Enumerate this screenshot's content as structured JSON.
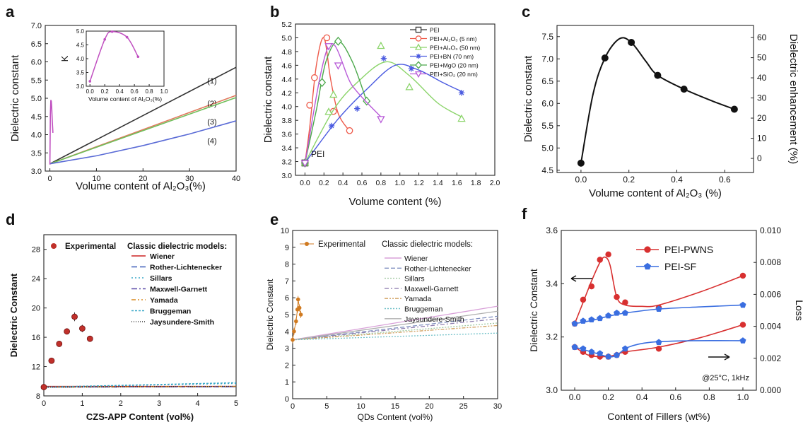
{
  "chart_data": [
    {
      "panel": "a",
      "type": "line",
      "xlabel": "Volume content of Al₂O₃(%)",
      "ylabel": "Dielectric constant",
      "xlim": [
        -1,
        40
      ],
      "ylim": [
        3.0,
        7.0
      ],
      "xticks": [
        "0",
        "10",
        "20",
        "30",
        "40"
      ],
      "yticks": [
        "3.0",
        "3.5",
        "4.0",
        "4.5",
        "5.0",
        "5.5",
        "6.0",
        "6.5",
        "7.0"
      ],
      "series": [
        {
          "name": "(1)",
          "color": "#333333",
          "x": [
            0,
            40
          ],
          "y": [
            3.2,
            5.85
          ]
        },
        {
          "name": "(2)",
          "color": "#e07a5f",
          "x": [
            0,
            40
          ],
          "y": [
            3.2,
            5.08
          ]
        },
        {
          "name": "(3)",
          "color": "#6fbf5a",
          "x": [
            0,
            40
          ],
          "y": [
            3.2,
            5.02
          ]
        },
        {
          "name": "(4)",
          "color": "#5a6bd6",
          "x": [
            0,
            10,
            20,
            30,
            40
          ],
          "y": [
            3.2,
            3.42,
            3.7,
            4.02,
            4.38
          ]
        },
        {
          "name": "",
          "color": "#c050c0",
          "x": [
            0,
            0.1,
            0.2,
            0.3,
            0.4,
            0.5,
            0.65
          ],
          "y": [
            3.18,
            4.55,
            4.95,
            4.92,
            4.72,
            4.4,
            4.05
          ]
        }
      ],
      "inset": {
        "xlabel": "Volume content of Al₂O₃(%)",
        "ylabel": "K",
        "xlim": [
          -0.05,
          1.0
        ],
        "ylim": [
          3.0,
          5.0
        ],
        "xticks": [
          "0.0",
          "0.2",
          "0.4",
          "0.6",
          "0.8",
          "1.0"
        ],
        "yticks": [
          "3.0",
          "3.5",
          "4.0",
          "4.5",
          "5.0"
        ],
        "x": [
          0.0,
          0.2,
          0.3,
          0.5,
          0.65
        ],
        "y": [
          3.18,
          4.7,
          4.98,
          4.78,
          4.07
        ]
      }
    },
    {
      "panel": "b",
      "type": "line",
      "xlabel": "Volume content (%)",
      "ylabel": "Dielectric constant",
      "xlim": [
        -0.1,
        2.0
      ],
      "ylim": [
        3.0,
        5.2
      ],
      "xticks": [
        "0.0",
        "0.2",
        "0.4",
        "0.6",
        "0.8",
        "1.0",
        "1.2",
        "1.4",
        "1.6",
        "1.8",
        "2.0"
      ],
      "yticks": [
        "3.0",
        "3.2",
        "3.4",
        "3.6",
        "3.8",
        "4.0",
        "4.2",
        "4.4",
        "4.6",
        "4.8",
        "5.0",
        "5.2"
      ],
      "annotation": "PEI",
      "series": [
        {
          "name": "PEI",
          "color": "#333333",
          "marker": "square",
          "x": [
            0
          ],
          "y": [
            3.18
          ],
          "curve": []
        },
        {
          "name": "PEI+Al₂O₃ (5 nm)",
          "color": "#ee5a4a",
          "marker": "circle",
          "x": [
            0,
            0.05,
            0.1,
            0.23,
            0.3,
            0.47
          ],
          "y": [
            3.18,
            4.02,
            4.42,
            5.0,
            3.93,
            3.65
          ],
          "curve": [
            [
              0,
              3.18
            ],
            [
              0.05,
              3.7
            ],
            [
              0.12,
              4.6
            ],
            [
              0.2,
              5.0
            ],
            [
              0.27,
              4.4
            ],
            [
              0.35,
              3.9
            ],
            [
              0.46,
              3.66
            ]
          ]
        },
        {
          "name": "PEI+Al₂O₃ (50 nm)",
          "color": "#8bd46a",
          "marker": "triangle",
          "x": [
            0,
            0.25,
            0.3,
            0.8,
            1.1,
            1.65
          ],
          "y": [
            3.18,
            3.92,
            4.17,
            4.88,
            4.28,
            3.82
          ],
          "curve": [
            [
              0,
              3.18
            ],
            [
              0.3,
              3.95
            ],
            [
              0.55,
              4.35
            ],
            [
              0.85,
              4.65
            ],
            [
              1.1,
              4.45
            ],
            [
              1.4,
              4.05
            ],
            [
              1.65,
              3.85
            ]
          ]
        },
        {
          "name": "PEI+BN (70 nm)",
          "color": "#4a5ae0",
          "marker": "asterisk",
          "x": [
            0,
            0.28,
            0.55,
            0.83,
            1.12,
            1.65
          ],
          "y": [
            3.18,
            3.72,
            3.97,
            4.7,
            4.55,
            4.2
          ],
          "curve": [
            [
              0,
              3.18
            ],
            [
              0.35,
              3.82
            ],
            [
              0.65,
              4.25
            ],
            [
              0.95,
              4.6
            ],
            [
              1.2,
              4.53
            ],
            [
              1.45,
              4.35
            ],
            [
              1.65,
              4.22
            ]
          ]
        },
        {
          "name": "PEI+MgO (20 nm)",
          "color": "#4aa84a",
          "marker": "diamond",
          "x": [
            0,
            0.18,
            0.35,
            0.65
          ],
          "y": [
            3.18,
            4.35,
            4.95,
            4.08
          ],
          "curve": [
            [
              0,
              3.18
            ],
            [
              0.12,
              3.95
            ],
            [
              0.22,
              4.65
            ],
            [
              0.35,
              4.95
            ],
            [
              0.5,
              4.65
            ],
            [
              0.65,
              4.08
            ]
          ]
        },
        {
          "name": "PEI+SiO₂ (20 nm)",
          "color": "#b85ad8",
          "marker": "triangle-down",
          "x": [
            0,
            0.25,
            0.35,
            0.8
          ],
          "y": [
            3.18,
            4.88,
            4.6,
            3.82
          ],
          "curve": [
            [
              0,
              3.18
            ],
            [
              0.25,
              4.88
            ],
            [
              0.5,
              4.3
            ],
            [
              0.8,
              3.85
            ]
          ]
        }
      ]
    },
    {
      "panel": "c",
      "type": "line",
      "xlabel": "Volume content of Al₂O₃ (%)",
      "ylabel": "Dielectric constant",
      "y2label": "Dielectric enhancement (%)",
      "xlim": [
        -0.1,
        0.72
      ],
      "ylim": [
        4.45,
        7.75
      ],
      "y2lim": [
        -7,
        66
      ],
      "xticks": [
        "0.0",
        "0.2",
        "0.4",
        "0.6"
      ],
      "yticks": [
        "4.5",
        "5.0",
        "5.5",
        "6.0",
        "6.5",
        "7.0",
        "7.5"
      ],
      "y2ticks": [
        "0",
        "10",
        "20",
        "30",
        "40",
        "50",
        "60"
      ],
      "x": [
        0.0,
        0.1,
        0.21,
        0.32,
        0.43,
        0.64
      ],
      "y": [
        4.66,
        7.02,
        7.37,
        6.63,
        6.32,
        5.87
      ],
      "curve": [
        [
          0,
          4.66
        ],
        [
          0.05,
          6.2
        ],
        [
          0.1,
          7.02
        ],
        [
          0.16,
          7.45
        ],
        [
          0.21,
          7.37
        ],
        [
          0.27,
          6.95
        ],
        [
          0.32,
          6.63
        ],
        [
          0.43,
          6.32
        ],
        [
          0.55,
          6.05
        ],
        [
          0.64,
          5.87
        ]
      ]
    },
    {
      "panel": "d",
      "type": "scatter",
      "xlabel": "CZS-APP Content (vol%)",
      "ylabel": "Dielectric Constant",
      "xlim": [
        0,
        5
      ],
      "ylim": [
        8,
        30
      ],
      "xticks": [
        "0",
        "1",
        "2",
        "3",
        "4",
        "5"
      ],
      "yticks": [
        "8",
        "12",
        "16",
        "20",
        "24",
        "28"
      ],
      "legend_header": "Classic dielectric models:",
      "experimental": {
        "name": "Experimental",
        "color": "#c0302a",
        "x": [
          0,
          0.2,
          0.4,
          0.6,
          0.8,
          1.0,
          1.2
        ],
        "y": [
          9.2,
          12.8,
          15.1,
          16.8,
          18.8,
          17.2,
          15.8
        ],
        "err": [
          0.2,
          0.3,
          0.4,
          0.4,
          0.6,
          0.5,
          0.4
        ]
      },
      "models": [
        {
          "name": "Wiener",
          "color": "#cc2222",
          "dash": "",
          "y": [
            9.3,
            9.3
          ]
        },
        {
          "name": "Rother-Lichtenecker",
          "color": "#3a5ab8",
          "dash": "8 4",
          "y": [
            9.2,
            9.25
          ]
        },
        {
          "name": "Sillars",
          "color": "#3aa8c8",
          "dash": "2 3",
          "y": [
            9.2,
            9.7
          ]
        },
        {
          "name": "Maxwell-Garnett",
          "color": "#5a4aa8",
          "dash": "8 3 2 3",
          "y": [
            9.2,
            9.25
          ]
        },
        {
          "name": "Yamada",
          "color": "#d88a20",
          "dash": "6 3 2 3 2 3",
          "y": [
            9.2,
            9.3
          ]
        },
        {
          "name": "Bruggeman",
          "color": "#3aa8c8",
          "dash": "3 2",
          "y": [
            9.2,
            9.8
          ]
        },
        {
          "name": "Jaysundere-Smith",
          "color": "#333333",
          "dash": "1 2",
          "y": [
            9.2,
            9.3
          ]
        }
      ]
    },
    {
      "panel": "e",
      "type": "scatter",
      "xlabel": "QDs Content (vol%)",
      "ylabel": "Dielectric Constant",
      "xlim": [
        0,
        30
      ],
      "ylim": [
        0,
        10
      ],
      "xticks": [
        "0",
        "5",
        "10",
        "15",
        "20",
        "25",
        "30"
      ],
      "yticks": [
        "0",
        "1",
        "2",
        "3",
        "4",
        "5",
        "6",
        "7",
        "8",
        "9",
        "10"
      ],
      "legend_header": "Classic dielectric models:",
      "experimental": {
        "name": "Experimental",
        "color": "#d07a20",
        "x": [
          0,
          0.2,
          0.5,
          0.7,
          0.8,
          1.0,
          1.2
        ],
        "y": [
          3.5,
          4.0,
          4.6,
          5.3,
          5.9,
          5.4,
          5.0
        ]
      },
      "models": [
        {
          "name": "Wiener",
          "color": "#d8a0d8",
          "dash": "",
          "y": [
            3.5,
            5.5
          ]
        },
        {
          "name": "Rother-Lichtenecker",
          "color": "#8090c0",
          "dash": "6 3",
          "y": [
            3.5,
            4.9
          ]
        },
        {
          "name": "Sillars",
          "color": "#a0c8a0",
          "dash": "2 2",
          "y": [
            3.5,
            4.5
          ]
        },
        {
          "name": "Maxwell-Garnett",
          "color": "#9080b0",
          "dash": "6 3 2 3",
          "y": [
            3.5,
            4.75
          ]
        },
        {
          "name": "Yamada",
          "color": "#d0a060",
          "dash": "5 2 2 2 2 2",
          "y": [
            3.5,
            4.35
          ]
        },
        {
          "name": "Bruggeman",
          "color": "#70c0c8",
          "dash": "2 2",
          "y": [
            3.5,
            3.9
          ]
        },
        {
          "name": "Jaysundere-Smith",
          "color": "#b0b0b0",
          "dash": "",
          "y": [
            3.5,
            5.2
          ]
        }
      ]
    },
    {
      "panel": "f",
      "type": "line",
      "xlabel": "Content of Fillers (wt%)",
      "ylabel": "Dielectric Constant",
      "y2label": "Loss",
      "xlim": [
        -0.08,
        1.08
      ],
      "ylim": [
        3.0,
        3.6
      ],
      "y2lim": [
        0,
        0.01
      ],
      "xticks": [
        "0.0",
        "0.2",
        "0.4",
        "0.6",
        "0.8",
        "1.0"
      ],
      "yticks": [
        "3.0",
        "3.2",
        "3.4",
        "3.6"
      ],
      "y2ticks": [
        "0.000",
        "0.002",
        "0.004",
        "0.006",
        "0.008",
        "0.010"
      ],
      "annotation": "@25°C, 1kHz",
      "series": [
        {
          "name": "PEI-PWNS",
          "axis": "left",
          "color": "#d83030",
          "marker": "circle",
          "x": [
            0,
            0.05,
            0.1,
            0.15,
            0.2,
            0.25,
            0.3,
            0.5,
            1.0
          ],
          "y": [
            3.25,
            3.34,
            3.39,
            3.49,
            3.51,
            3.35,
            3.33,
            3.31,
            3.43
          ],
          "curve": [
            [
              0,
              3.25
            ],
            [
              0.05,
              3.33
            ],
            [
              0.1,
              3.41
            ],
            [
              0.15,
              3.48
            ],
            [
              0.18,
              3.5
            ],
            [
              0.21,
              3.47
            ],
            [
              0.25,
              3.35
            ],
            [
              0.3,
              3.32
            ],
            [
              0.4,
              3.315
            ],
            [
              0.5,
              3.32
            ],
            [
              0.75,
              3.37
            ],
            [
              1.0,
              3.43
            ]
          ]
        },
        {
          "name": "PEI-SF",
          "axis": "left",
          "color": "#3a6ee0",
          "marker": "pentagon",
          "x": [
            0,
            0.05,
            0.1,
            0.15,
            0.2,
            0.25,
            0.3,
            0.5,
            1.0
          ],
          "y": [
            3.25,
            3.26,
            3.265,
            3.27,
            3.28,
            3.29,
            3.29,
            3.305,
            3.32
          ],
          "curve": [
            [
              0,
              3.25
            ],
            [
              0.1,
              3.262
            ],
            [
              0.2,
              3.278
            ],
            [
              0.3,
              3.29
            ],
            [
              0.5,
              3.305
            ],
            [
              0.75,
              3.313
            ],
            [
              1.0,
              3.32
            ]
          ]
        },
        {
          "name": "",
          "axis": "right",
          "color": "#d83030",
          "marker": "circle",
          "x": [
            0,
            0.05,
            0.1,
            0.15,
            0.2,
            0.25,
            0.3,
            0.5,
            1.0
          ],
          "y": [
            0.0027,
            0.0024,
            0.0022,
            0.0021,
            0.0021,
            0.0022,
            0.0024,
            0.0026,
            0.0041
          ],
          "curve": [
            [
              0,
              0.0027
            ],
            [
              0.08,
              0.0022
            ],
            [
              0.15,
              0.0021
            ],
            [
              0.22,
              0.00215
            ],
            [
              0.3,
              0.0024
            ],
            [
              0.5,
              0.0027
            ],
            [
              0.75,
              0.0033
            ],
            [
              1.0,
              0.0041
            ]
          ]
        },
        {
          "name": "",
          "axis": "right",
          "color": "#3a6ee0",
          "marker": "pentagon",
          "x": [
            0,
            0.05,
            0.1,
            0.15,
            0.2,
            0.25,
            0.3,
            0.5,
            1.0
          ],
          "y": [
            0.0027,
            0.0026,
            0.0024,
            0.0023,
            0.0021,
            0.0022,
            0.0026,
            0.003,
            0.0031
          ],
          "curve": [
            [
              0,
              0.0027
            ],
            [
              0.1,
              0.0024
            ],
            [
              0.2,
              0.0021
            ],
            [
              0.25,
              0.0022
            ],
            [
              0.32,
              0.0027
            ],
            [
              0.45,
              0.003
            ],
            [
              0.7,
              0.0031
            ],
            [
              1.0,
              0.0031
            ]
          ]
        }
      ]
    }
  ],
  "panel_letters": [
    "a",
    "b",
    "c",
    "d",
    "e",
    "f"
  ]
}
